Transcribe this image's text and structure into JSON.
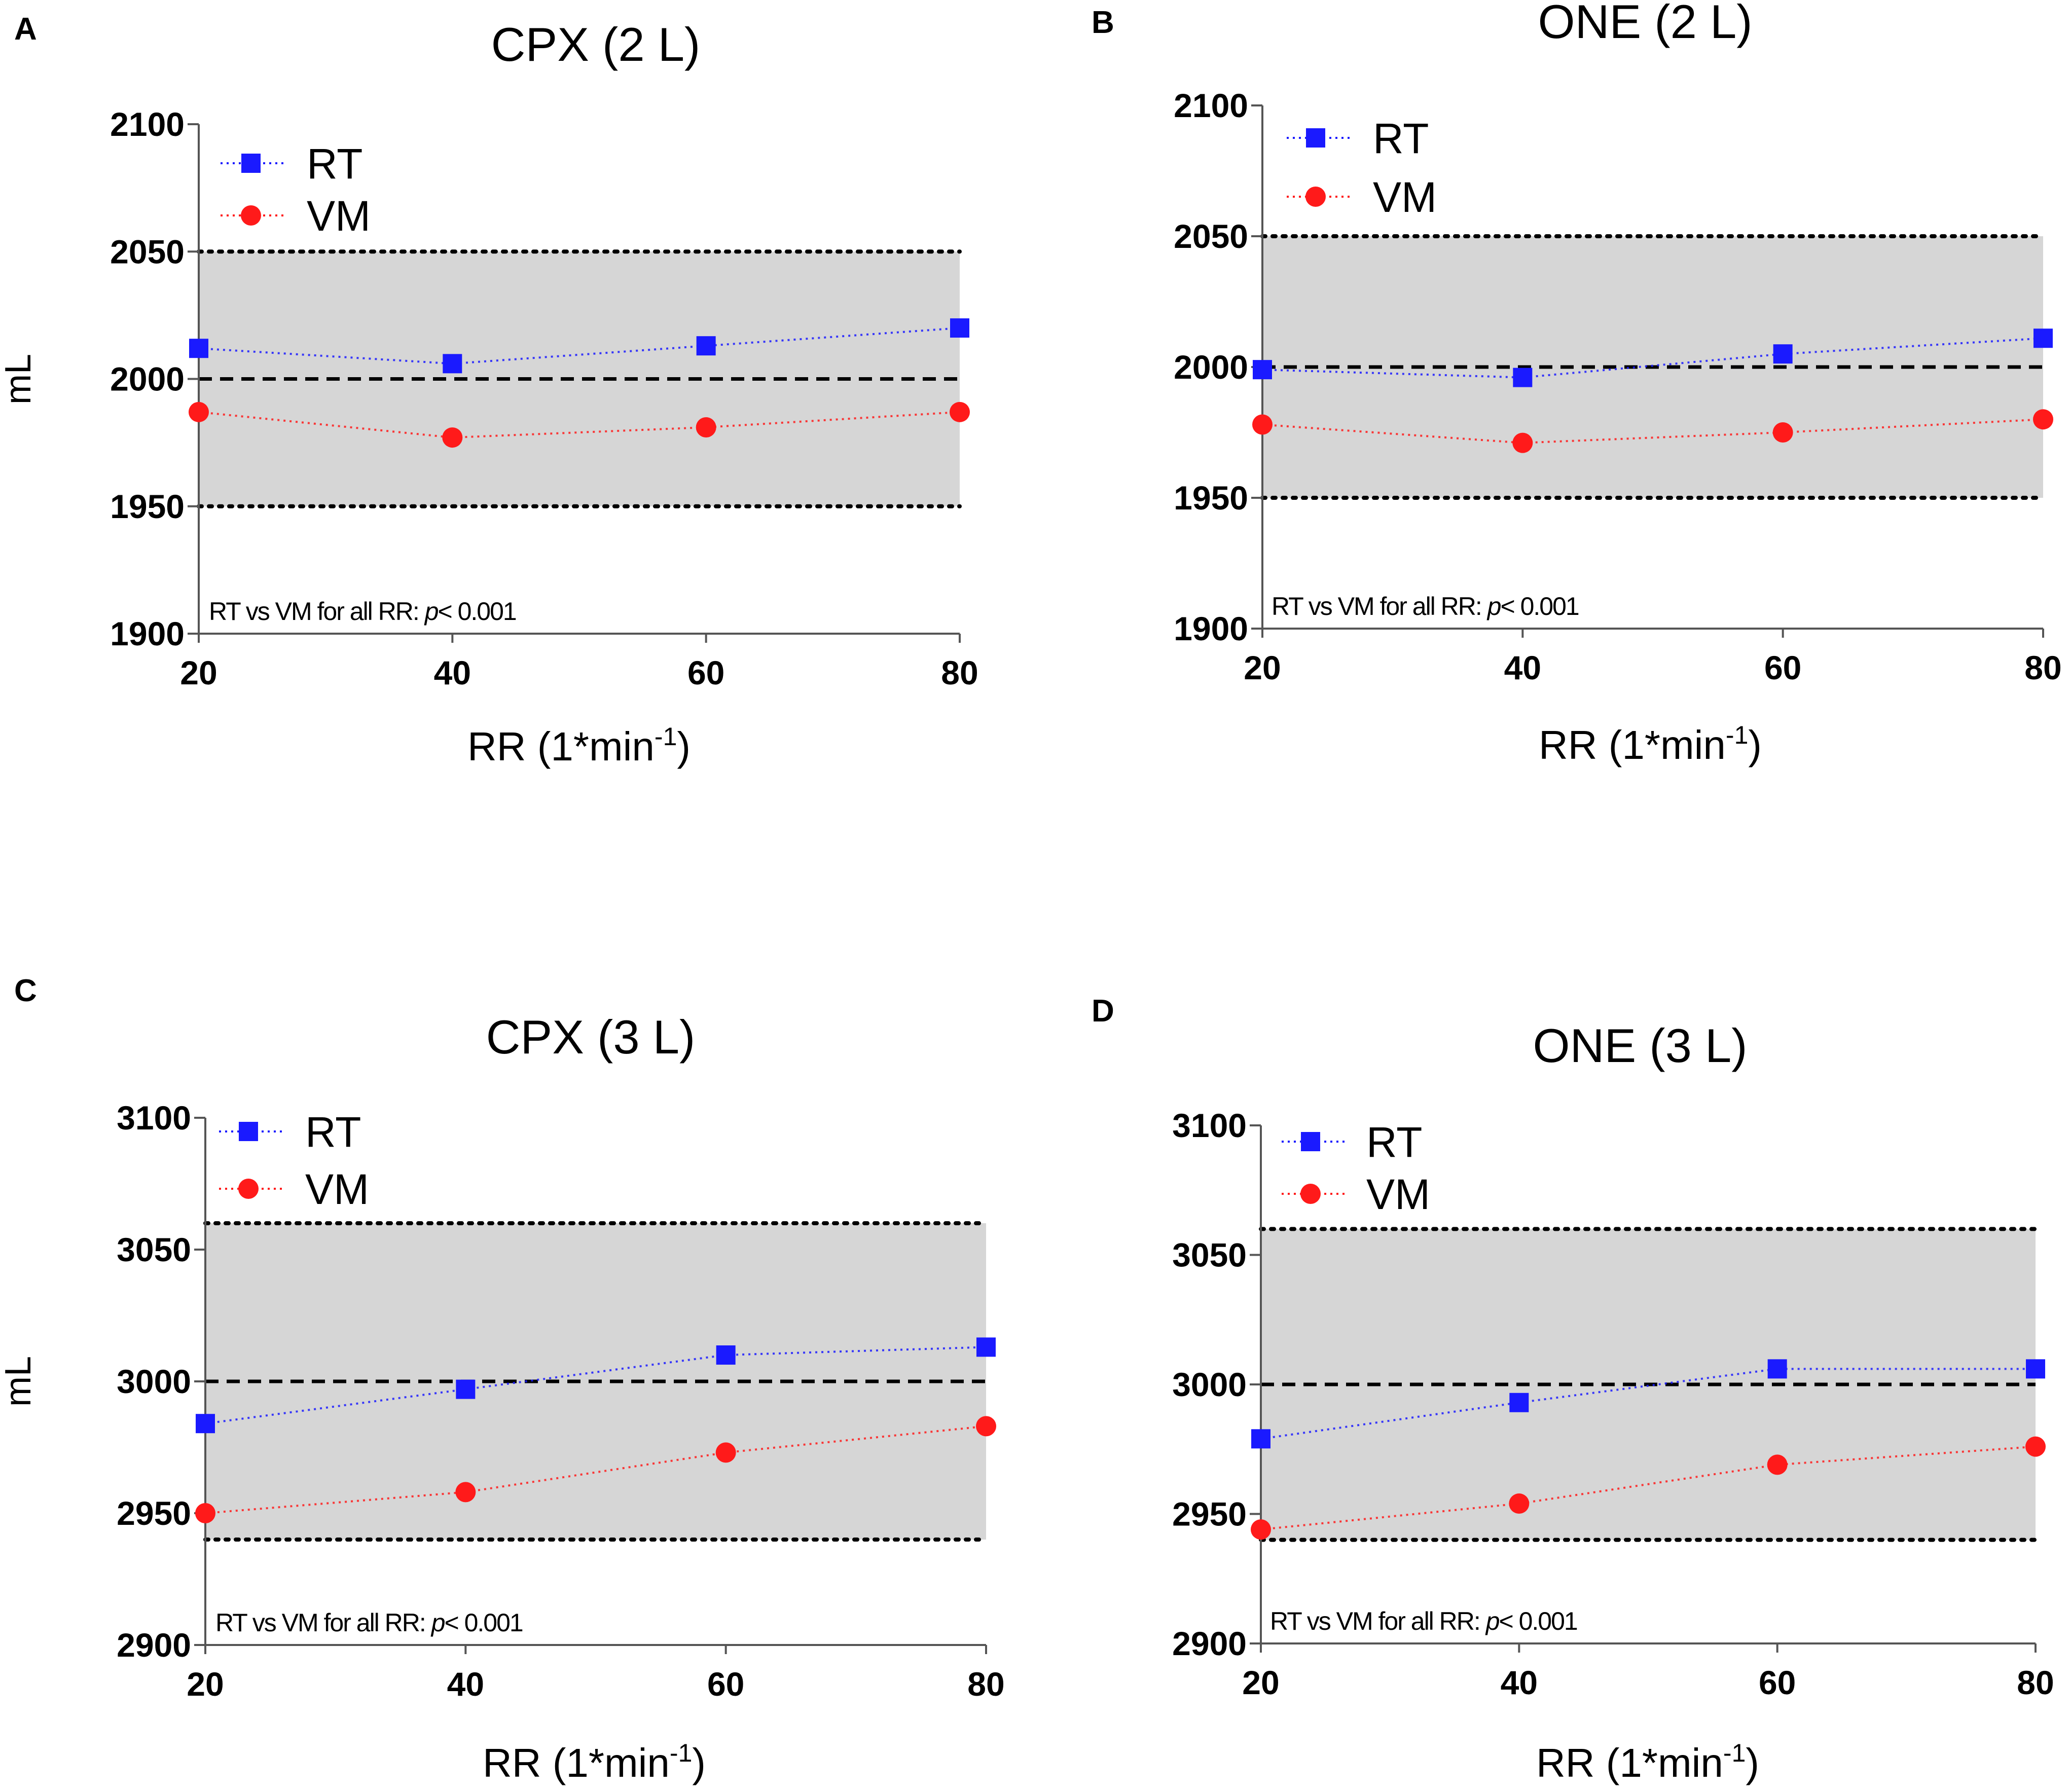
{
  "chart_data": [
    {
      "type": "line",
      "panel": "A",
      "title": "CPX (2 L)",
      "xlabel": "RR (1*min",
      "xlabel_sup": "-1",
      "xlabel_end": ")",
      "ylabel": "mL",
      "x": [
        20,
        40,
        60,
        80
      ],
      "xlim": [
        20,
        80
      ],
      "ylim": [
        1900,
        2100
      ],
      "yticks": [
        1900,
        1950,
        2000,
        2050,
        2100
      ],
      "reference_line": 2000,
      "band": [
        1950,
        2050
      ],
      "series": [
        {
          "name": "RT",
          "color": "#1a1aff",
          "marker": "square",
          "values": [
            2012,
            2006,
            2013,
            2020
          ]
        },
        {
          "name": "VM",
          "color": "#ff1a1a",
          "marker": "circle",
          "values": [
            1987,
            1977,
            1981,
            1987
          ]
        }
      ],
      "annotation": {
        "text": "RT vs VM for all RR: ",
        "p": "p",
        "rest": "< 0.001"
      }
    },
    {
      "type": "line",
      "panel": "B",
      "title": "ONE (2 L)",
      "xlabel": "RR (1*min",
      "xlabel_sup": "-1",
      "xlabel_end": ")",
      "ylabel": "",
      "x": [
        20,
        40,
        60,
        80
      ],
      "xlim": [
        20,
        80
      ],
      "ylim": [
        1900,
        2100
      ],
      "yticks": [
        1900,
        1950,
        2000,
        2050,
        2100
      ],
      "reference_line": 2000,
      "band": [
        1950,
        2050
      ],
      "series": [
        {
          "name": "RT",
          "color": "#1a1aff",
          "marker": "square",
          "values": [
            1999,
            1996,
            2005,
            2011
          ]
        },
        {
          "name": "VM",
          "color": "#ff1a1a",
          "marker": "circle",
          "values": [
            1978,
            1971,
            1975,
            1980
          ]
        }
      ],
      "annotation": {
        "text": "RT vs VM for all RR: ",
        "p": "p",
        "rest": "< 0.001"
      }
    },
    {
      "type": "line",
      "panel": "C",
      "title": "CPX (3 L)",
      "xlabel": "RR (1*min",
      "xlabel_sup": "-1",
      "xlabel_end": ")",
      "ylabel": "mL",
      "x": [
        20,
        40,
        60,
        80
      ],
      "xlim": [
        20,
        80
      ],
      "ylim": [
        2900,
        3100
      ],
      "yticks": [
        2900,
        2950,
        3000,
        3050,
        3100
      ],
      "reference_line": 3000,
      "band": [
        2940,
        3060
      ],
      "series": [
        {
          "name": "RT",
          "color": "#1a1aff",
          "marker": "square",
          "values": [
            2984,
            2997,
            3010,
            3013
          ]
        },
        {
          "name": "VM",
          "color": "#ff1a1a",
          "marker": "circle",
          "values": [
            2950,
            2958,
            2973,
            2983
          ]
        }
      ],
      "annotation": {
        "text": "RT vs VM for all RR: ",
        "p": "p",
        "rest": "< 0.001"
      }
    },
    {
      "type": "line",
      "panel": "D",
      "title": "ONE (3 L)",
      "xlabel": "RR (1*min",
      "xlabel_sup": "-1",
      "xlabel_end": ")",
      "ylabel": "",
      "x": [
        20,
        40,
        60,
        80
      ],
      "xlim": [
        20,
        80
      ],
      "ylim": [
        2900,
        3100
      ],
      "yticks": [
        2900,
        2950,
        3000,
        3050,
        3100
      ],
      "reference_line": 3000,
      "band": [
        2940,
        3060
      ],
      "series": [
        {
          "name": "RT",
          "color": "#1a1aff",
          "marker": "square",
          "values": [
            2979,
            2993,
            3006,
            3006
          ]
        },
        {
          "name": "VM",
          "color": "#ff1a1a",
          "marker": "circle",
          "values": [
            2944,
            2954,
            2969,
            2976
          ]
        }
      ],
      "annotation": {
        "text": "RT vs VM for all RR: ",
        "p": "p",
        "rest": "< 0.001"
      }
    }
  ]
}
